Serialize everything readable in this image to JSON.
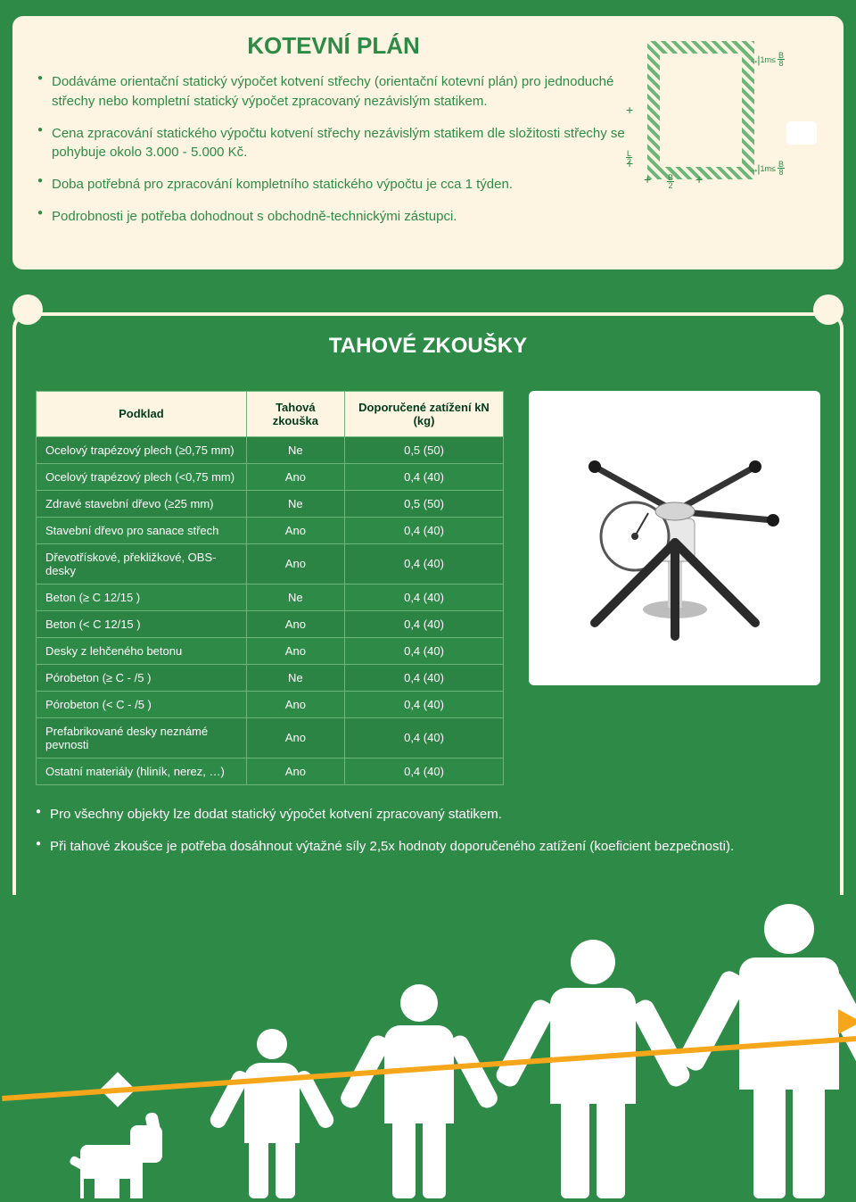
{
  "colors": {
    "green": "#2e8a47",
    "cream": "#fdf5e2",
    "orange": "#f6a61a",
    "white": "#ffffff",
    "table_border": "#6db67a"
  },
  "top": {
    "title": "KOTEVNÍ PLÁN",
    "bullets": [
      "Dodáváme orientační statický výpočet kotvení střechy (orientační kotevní plán) pro jednoduché střechy nebo kompletní statický výpočet zpracovaný nezávislým statikem.",
      "Cena zpracování statického výpočtu kotvení střechy nezávislým statikem dle složitosti střechy se pohybuje okolo 3.000 - 5.000 Kč.",
      "Doba potřebná pro zpracování kompletního statického výpočtu je cca 1 týden.",
      "Podrobnosti je potřeba dohodnout s obchodně-technickými zástupci."
    ],
    "diagram": {
      "dim_label": "1m≤",
      "frac_top": "B",
      "frac_bot": "8",
      "L_label_top": "L",
      "L_label_bot": "2",
      "B_label_top": "B",
      "B_label_bot": "2"
    }
  },
  "tests": {
    "title": "TAHOVÉ ZKOUŠKY",
    "headers": {
      "col1": "Podklad",
      "col2": "Tahová zkouška",
      "col3": "Doporučené zatížení kN (kg)"
    },
    "rows": [
      {
        "name": "Ocelový trapézový plech (≥0,75 mm)",
        "test": "Ne",
        "load": "0,5 (50)"
      },
      {
        "name": "Ocelový trapézový plech (<0,75 mm)",
        "test": "Ano",
        "load": "0,4 (40)"
      },
      {
        "name": "Zdravé stavební dřevo (≥25 mm)",
        "test": "Ne",
        "load": "0,5 (50)"
      },
      {
        "name": "Stavební dřevo pro sanace střech",
        "test": "Ano",
        "load": "0,4 (40)"
      },
      {
        "name": "Dřevotřískové, překližkové, OBS-desky",
        "test": "Ano",
        "load": "0,4 (40)"
      },
      {
        "name": "Beton (≥ C 12/15 )",
        "test": "Ne",
        "load": "0,4 (40)"
      },
      {
        "name": "Beton (< C 12/15 )",
        "test": "Ano",
        "load": "0,4 (40)"
      },
      {
        "name": "Desky z lehčeného betonu",
        "test": "Ano",
        "load": "0,4 (40)"
      },
      {
        "name": "Pórobeton (≥ C - /5 )",
        "test": "Ne",
        "load": "0,4 (40)"
      },
      {
        "name": "Pórobeton (< C - /5 )",
        "test": "Ano",
        "load": "0,4 (40)"
      },
      {
        "name": "Prefabrikované desky neznámé pevnosti",
        "test": "Ano",
        "load": "0,4 (40)"
      },
      {
        "name": "Ostatní materiály (hliník, nerez, …)",
        "test": "Ano",
        "load": "0,4 (40)"
      }
    ],
    "notes": [
      "Pro všechny objekty lze dodat statický výpočet kotvení zpracovaný statikem.",
      "Při tahové zkoušce je potřeba dosáhnout výtažné síly 2,5x hodnoty doporučeného zatížení (koeficient bezpečnosti)."
    ]
  },
  "device_svg": {
    "body_color": "#e8e8e8",
    "dark": "#2a2a2a",
    "dial_color": "#ffffff",
    "dial_border": "#555555",
    "handle_color": "#333333"
  }
}
